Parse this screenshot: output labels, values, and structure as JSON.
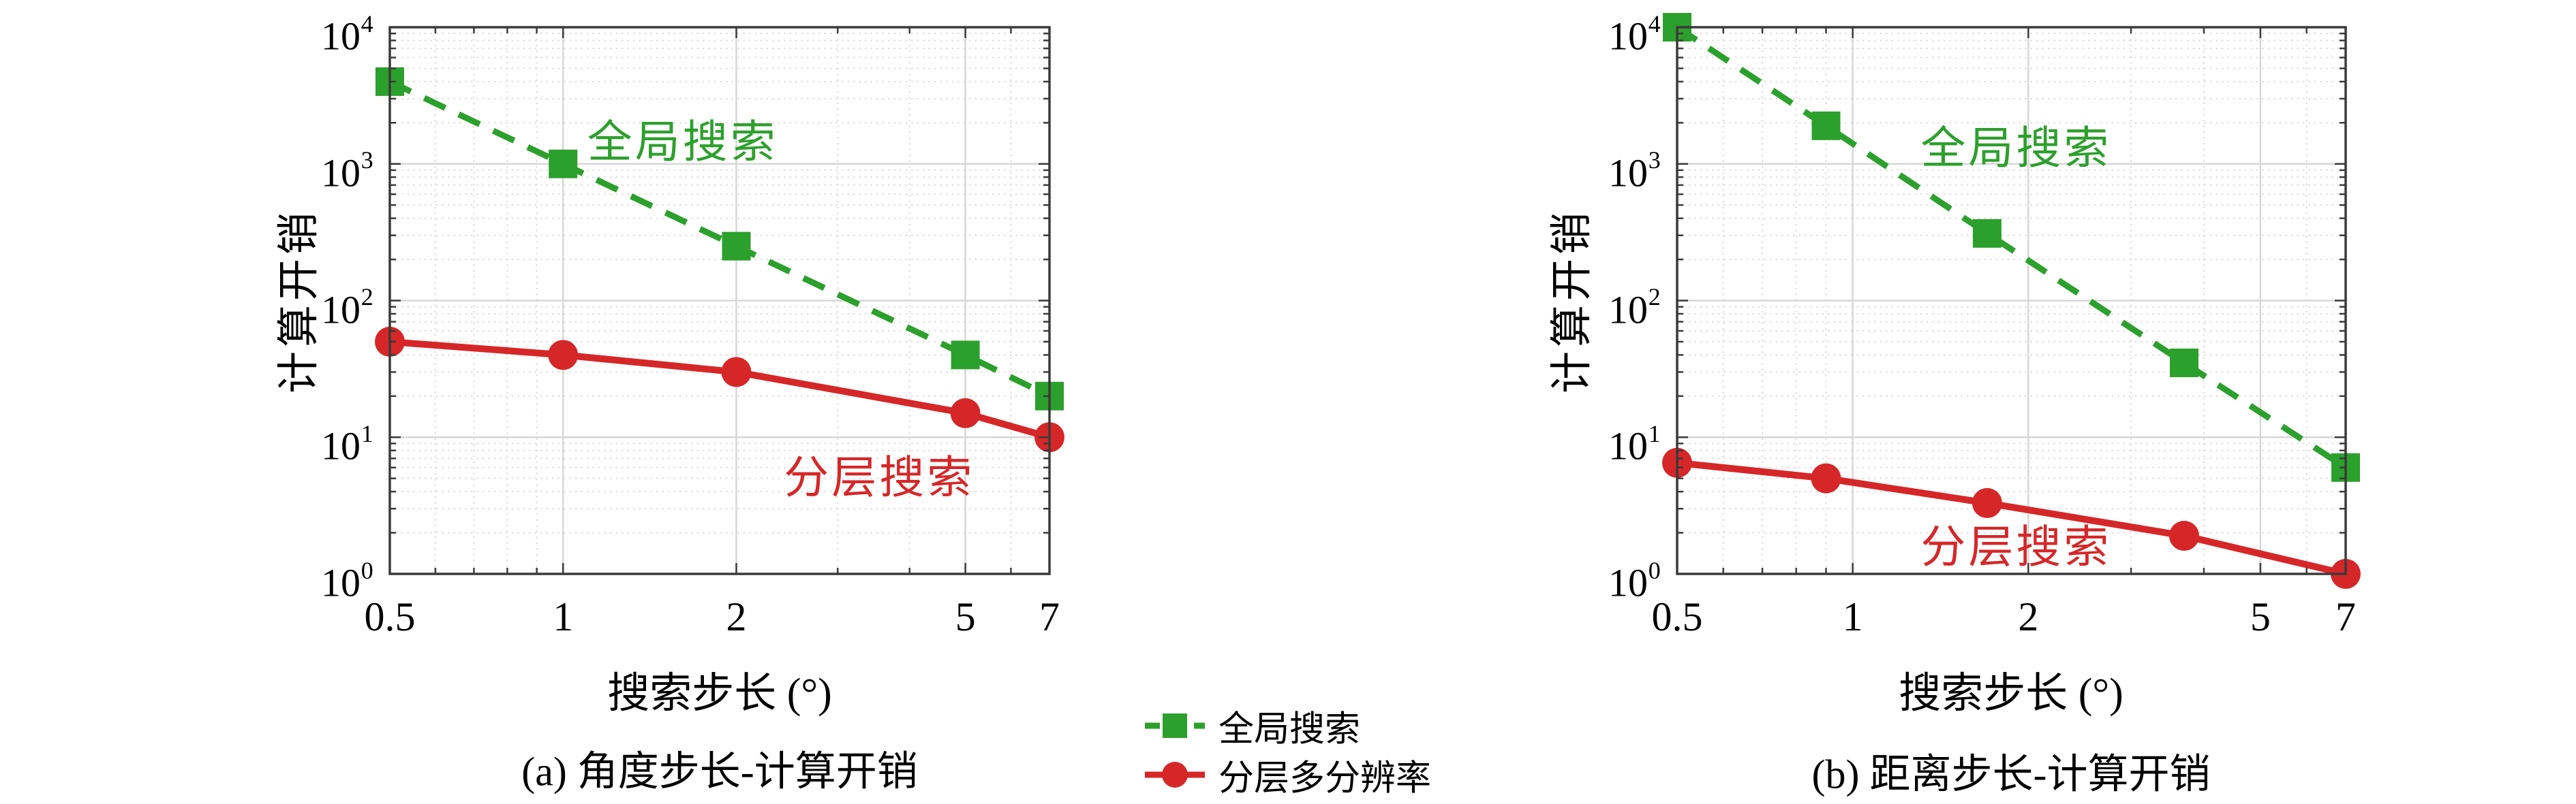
{
  "page": {
    "background": "#ffffff"
  },
  "colors": {
    "global": "#2ca02c",
    "hier": "#d62728",
    "grid": "#d7d7d7",
    "grid_minor": "#dcdcdc",
    "axis": "#3a3a3a",
    "text": "#000000"
  },
  "legend": {
    "position": "bottom-center",
    "items": [
      {
        "label": "全局搜索",
        "series": "global",
        "marker": "square",
        "line": "dashed"
      },
      {
        "label": "分层多分辨率",
        "series": "hier",
        "marker": "circle",
        "line": "solid"
      }
    ]
  },
  "chart_data": [
    {
      "type": "line",
      "id": "a",
      "caption": "(a) 角度步长-计算开销",
      "xlabel": "搜索步长 (°)",
      "ylabel": "计算开销",
      "xscale": "log",
      "yscale": "log",
      "xlim": [
        0.5,
        7
      ],
      "ylim": [
        1,
        10000
      ],
      "x_ticks": [
        0.5,
        1,
        2,
        5,
        7
      ],
      "x_tick_labels": [
        "0.5",
        "1",
        "2",
        "5",
        "7"
      ],
      "y_tick_exponents": [
        0,
        1,
        2,
        3,
        4
      ],
      "grid": "major+minor",
      "series": [
        {
          "name": "全局搜索",
          "key": "global",
          "marker": "square",
          "line": "dashed",
          "x": [
            0.5,
            1,
            2,
            5,
            7
          ],
          "y": [
            4000,
            1000,
            250,
            40,
            20
          ]
        },
        {
          "name": "分层多分辨率",
          "key": "hier",
          "marker": "circle",
          "line": "solid",
          "x": [
            0.5,
            1,
            2,
            5,
            7
          ],
          "y": [
            50,
            40,
            30,
            15,
            10
          ]
        }
      ],
      "annotations": [
        {
          "text": "全局搜索",
          "series": "global",
          "fx": 0.444,
          "fy": 0.203
        },
        {
          "text": "分层搜索",
          "series": "hier",
          "fx": 0.742,
          "fy": 0.817
        }
      ]
    },
    {
      "type": "line",
      "id": "b",
      "caption": "(b) 距离步长-计算开销",
      "xlabel": "搜索步长 (°)",
      "ylabel": "计算开销",
      "xscale": "log",
      "yscale": "log",
      "xlim": [
        0.5,
        7
      ],
      "ylim": [
        1,
        10000
      ],
      "x_ticks": [
        0.5,
        1,
        2,
        5,
        7
      ],
      "x_tick_labels": [
        "0.5",
        "1",
        "2",
        "5",
        "7"
      ],
      "y_tick_exponents": [
        0,
        1,
        2,
        3,
        4
      ],
      "grid": "major+minor",
      "series": [
        {
          "name": "全局搜索",
          "key": "global",
          "marker": "square",
          "line": "dashed",
          "x": [
            0.5,
            0.9,
            1.7,
            3.7,
            7
          ],
          "y": [
            10000,
            1900,
            310,
            35,
            6
          ]
        },
        {
          "name": "分层多分辨率",
          "key": "hier",
          "marker": "circle",
          "line": "solid",
          "x": [
            0.5,
            0.9,
            1.7,
            3.7,
            7
          ],
          "y": [
            6.5,
            5,
            3.3,
            1.9,
            1
          ]
        }
      ],
      "annotations": [
        {
          "text": "全局搜索",
          "series": "global",
          "fx": 0.507,
          "fy": 0.214
        },
        {
          "text": "分层搜索",
          "series": "hier",
          "fx": 0.507,
          "fy": 0.944
        }
      ]
    }
  ]
}
